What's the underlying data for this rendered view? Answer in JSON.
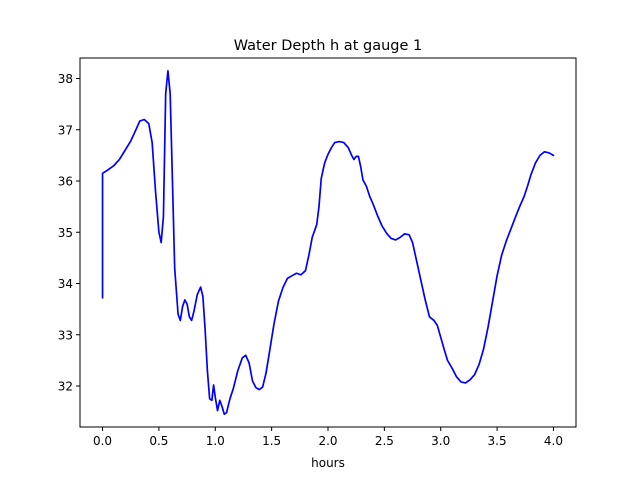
{
  "chart_data": {
    "type": "line",
    "title": "Water Depth h at gauge 1",
    "xlabel": "hours",
    "ylabel": "",
    "xlim": [
      -0.2,
      4.2
    ],
    "ylim": [
      31.2,
      38.4
    ],
    "xticks": [
      0.0,
      0.5,
      1.0,
      1.5,
      2.0,
      2.5,
      3.0,
      3.5,
      4.0
    ],
    "xtick_labels": [
      "0.0",
      "0.5",
      "1.0",
      "1.5",
      "2.0",
      "2.5",
      "3.0",
      "3.5",
      "4.0"
    ],
    "yticks": [
      32,
      33,
      34,
      35,
      36,
      37,
      38
    ],
    "ytick_labels": [
      "32",
      "33",
      "34",
      "35",
      "36",
      "37",
      "38"
    ],
    "grid": false,
    "series": [
      {
        "color": "#0000ff",
        "points": [
          [
            0.0,
            33.72
          ],
          [
            0.0,
            36.15
          ],
          [
            0.05,
            36.22
          ],
          [
            0.1,
            36.3
          ],
          [
            0.15,
            36.42
          ],
          [
            0.2,
            36.6
          ],
          [
            0.25,
            36.78
          ],
          [
            0.3,
            37.02
          ],
          [
            0.33,
            37.17
          ],
          [
            0.37,
            37.2
          ],
          [
            0.41,
            37.12
          ],
          [
            0.44,
            36.75
          ],
          [
            0.47,
            35.8
          ],
          [
            0.5,
            35.0
          ],
          [
            0.52,
            34.8
          ],
          [
            0.54,
            35.3
          ],
          [
            0.56,
            37.7
          ],
          [
            0.58,
            38.15
          ],
          [
            0.6,
            37.7
          ],
          [
            0.62,
            36.0
          ],
          [
            0.64,
            34.3
          ],
          [
            0.67,
            33.4
          ],
          [
            0.69,
            33.28
          ],
          [
            0.71,
            33.55
          ],
          [
            0.73,
            33.68
          ],
          [
            0.75,
            33.6
          ],
          [
            0.77,
            33.35
          ],
          [
            0.79,
            33.28
          ],
          [
            0.81,
            33.45
          ],
          [
            0.84,
            33.78
          ],
          [
            0.87,
            33.93
          ],
          [
            0.89,
            33.75
          ],
          [
            0.91,
            33.1
          ],
          [
            0.93,
            32.3
          ],
          [
            0.95,
            31.75
          ],
          [
            0.97,
            31.72
          ],
          [
            0.985,
            32.02
          ],
          [
            1.0,
            31.78
          ],
          [
            1.02,
            31.52
          ],
          [
            1.04,
            31.72
          ],
          [
            1.06,
            31.6
          ],
          [
            1.08,
            31.45
          ],
          [
            1.1,
            31.48
          ],
          [
            1.13,
            31.75
          ],
          [
            1.16,
            31.95
          ],
          [
            1.2,
            32.3
          ],
          [
            1.24,
            32.55
          ],
          [
            1.27,
            32.6
          ],
          [
            1.3,
            32.45
          ],
          [
            1.33,
            32.1
          ],
          [
            1.36,
            31.97
          ],
          [
            1.39,
            31.93
          ],
          [
            1.42,
            31.98
          ],
          [
            1.45,
            32.25
          ],
          [
            1.48,
            32.65
          ],
          [
            1.52,
            33.2
          ],
          [
            1.56,
            33.65
          ],
          [
            1.6,
            33.92
          ],
          [
            1.64,
            34.1
          ],
          [
            1.68,
            34.15
          ],
          [
            1.72,
            34.2
          ],
          [
            1.76,
            34.17
          ],
          [
            1.8,
            34.25
          ],
          [
            1.83,
            34.55
          ],
          [
            1.86,
            34.9
          ],
          [
            1.9,
            35.15
          ],
          [
            1.92,
            35.5
          ],
          [
            1.94,
            36.05
          ],
          [
            1.97,
            36.35
          ],
          [
            2.0,
            36.52
          ],
          [
            2.03,
            36.65
          ],
          [
            2.06,
            36.75
          ],
          [
            2.1,
            36.77
          ],
          [
            2.14,
            36.75
          ],
          [
            2.18,
            36.65
          ],
          [
            2.21,
            36.5
          ],
          [
            2.23,
            36.42
          ],
          [
            2.25,
            36.48
          ],
          [
            2.27,
            36.48
          ],
          [
            2.29,
            36.28
          ],
          [
            2.31,
            36.02
          ],
          [
            2.34,
            35.9
          ],
          [
            2.37,
            35.7
          ],
          [
            2.4,
            35.55
          ],
          [
            2.44,
            35.32
          ],
          [
            2.48,
            35.12
          ],
          [
            2.52,
            34.98
          ],
          [
            2.56,
            34.88
          ],
          [
            2.6,
            34.85
          ],
          [
            2.64,
            34.9
          ],
          [
            2.68,
            34.97
          ],
          [
            2.72,
            34.95
          ],
          [
            2.75,
            34.8
          ],
          [
            2.78,
            34.5
          ],
          [
            2.82,
            34.1
          ],
          [
            2.86,
            33.7
          ],
          [
            2.9,
            33.35
          ],
          [
            2.94,
            33.28
          ],
          [
            2.97,
            33.18
          ],
          [
            3.0,
            32.95
          ],
          [
            3.03,
            32.72
          ],
          [
            3.06,
            32.5
          ],
          [
            3.1,
            32.35
          ],
          [
            3.14,
            32.18
          ],
          [
            3.18,
            32.08
          ],
          [
            3.22,
            32.06
          ],
          [
            3.26,
            32.12
          ],
          [
            3.3,
            32.22
          ],
          [
            3.34,
            32.42
          ],
          [
            3.38,
            32.72
          ],
          [
            3.42,
            33.15
          ],
          [
            3.46,
            33.65
          ],
          [
            3.5,
            34.15
          ],
          [
            3.54,
            34.55
          ],
          [
            3.58,
            34.82
          ],
          [
            3.62,
            35.05
          ],
          [
            3.66,
            35.28
          ],
          [
            3.7,
            35.5
          ],
          [
            3.74,
            35.7
          ],
          [
            3.77,
            35.9
          ],
          [
            3.8,
            36.12
          ],
          [
            3.84,
            36.35
          ],
          [
            3.88,
            36.5
          ],
          [
            3.92,
            36.57
          ],
          [
            3.96,
            36.55
          ],
          [
            4.0,
            36.5
          ]
        ]
      }
    ]
  }
}
